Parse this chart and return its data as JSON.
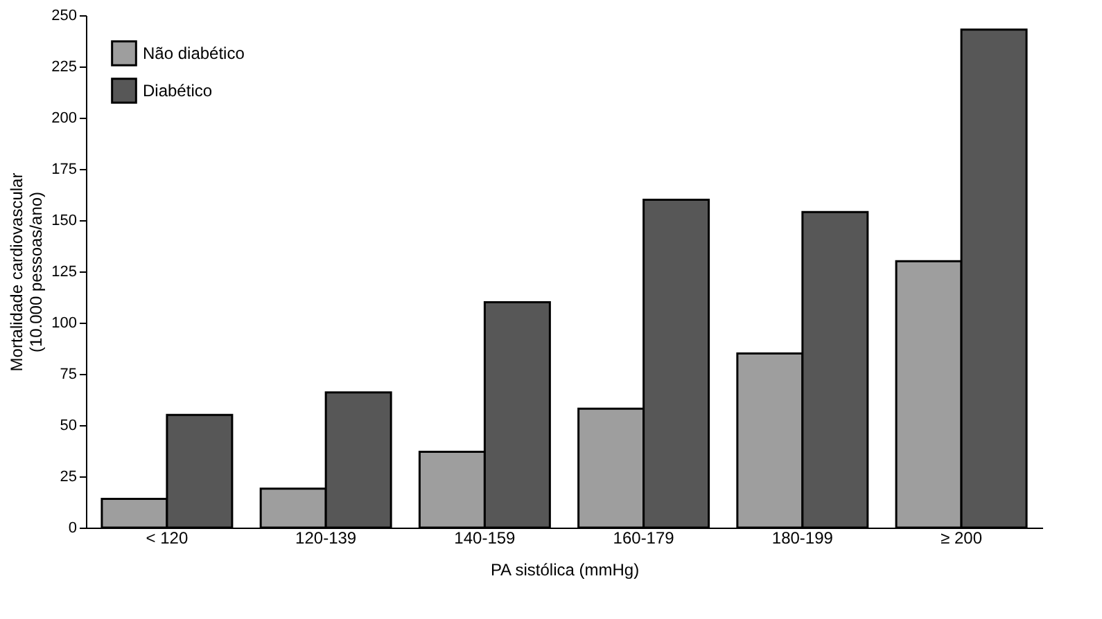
{
  "chart_data": {
    "type": "bar",
    "xlabel": "PA sistólica (mmHg)",
    "ylabel": "Mortalidade cardiovascular\n(10.000 pessoas/ano)",
    "categories": [
      "< 120",
      "120-139",
      "140-159",
      "160-179",
      "180-199",
      "≥ 200"
    ],
    "series": [
      {
        "name": "Não diabético",
        "color": "#9e9e9e",
        "values": [
          14,
          19,
          37,
          58,
          85,
          130
        ]
      },
      {
        "name": "Diabético",
        "color": "#575757",
        "values": [
          55,
          66,
          110,
          160,
          154,
          243
        ]
      }
    ],
    "ylim": [
      0,
      250
    ],
    "yticks": [
      0,
      25,
      50,
      75,
      100,
      125,
      150,
      175,
      200,
      225,
      250
    ],
    "grid": false,
    "legend": "top left"
  }
}
